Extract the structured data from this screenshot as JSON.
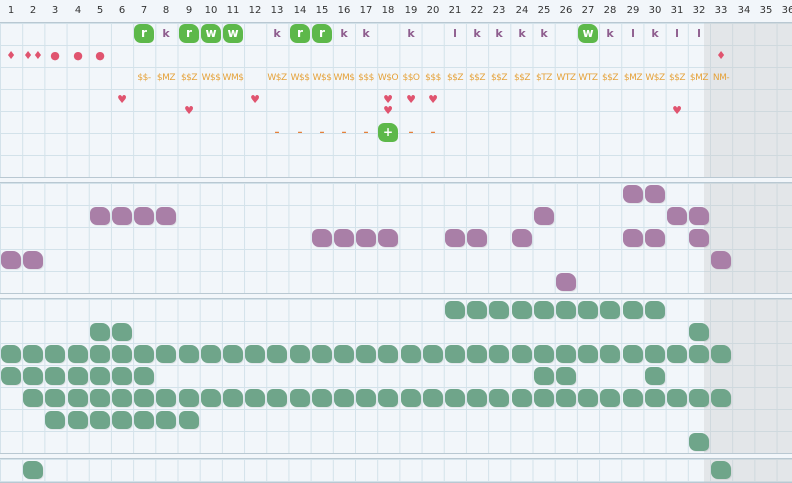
{
  "columns": [
    "1",
    "2",
    "3",
    "4",
    "5",
    "6",
    "7",
    "8",
    "9",
    "10",
    "11",
    "12",
    "13",
    "14",
    "15",
    "16",
    "17",
    "18",
    "19",
    "20",
    "21",
    "22",
    "23",
    "24",
    "25",
    "26",
    "27",
    "28",
    "29",
    "30",
    "31",
    "32",
    "33",
    "34",
    "35",
    "36"
  ],
  "colors": {
    "purple": "#a97fa7",
    "green": "#6fa58a",
    "bright": "#5db84a",
    "gold": "#e5a23a",
    "red": "#e0546f"
  },
  "band1": {
    "cells": [
      {
        "r": 0,
        "c": 7,
        "kind": "tag",
        "text": "r"
      },
      {
        "r": 0,
        "c": 8,
        "kind": "k",
        "text": "k"
      },
      {
        "r": 0,
        "c": 9,
        "kind": "tag",
        "text": "r"
      },
      {
        "r": 0,
        "c": 10,
        "kind": "tag",
        "text": "w"
      },
      {
        "r": 0,
        "c": 11,
        "kind": "tag",
        "text": "w"
      },
      {
        "r": 0,
        "c": 13,
        "kind": "k",
        "text": "k"
      },
      {
        "r": 0,
        "c": 14,
        "kind": "tag",
        "text": "r"
      },
      {
        "r": 0,
        "c": 15,
        "kind": "tag",
        "text": "r"
      },
      {
        "r": 0,
        "c": 16,
        "kind": "k",
        "text": "k"
      },
      {
        "r": 0,
        "c": 17,
        "kind": "k",
        "text": "k"
      },
      {
        "r": 0,
        "c": 19,
        "kind": "k",
        "text": "k"
      },
      {
        "r": 0,
        "c": 21,
        "kind": "k",
        "text": "l"
      },
      {
        "r": 0,
        "c": 22,
        "kind": "k",
        "text": "k"
      },
      {
        "r": 0,
        "c": 23,
        "kind": "k",
        "text": "k"
      },
      {
        "r": 0,
        "c": 24,
        "kind": "k",
        "text": "k"
      },
      {
        "r": 0,
        "c": 25,
        "kind": "k",
        "text": "k"
      },
      {
        "r": 0,
        "c": 27,
        "kind": "tag",
        "text": "w"
      },
      {
        "r": 0,
        "c": 28,
        "kind": "k",
        "text": "k"
      },
      {
        "r": 0,
        "c": 29,
        "kind": "k",
        "text": "l"
      },
      {
        "r": 0,
        "c": 30,
        "kind": "k",
        "text": "k"
      },
      {
        "r": 0,
        "c": 31,
        "kind": "k",
        "text": "l"
      },
      {
        "r": 0,
        "c": 32,
        "kind": "k",
        "text": "l"
      },
      {
        "r": 1,
        "c": 1,
        "kind": "drop",
        "text": "♦"
      },
      {
        "r": 1,
        "c": 2,
        "kind": "drop",
        "text": "♦♦"
      },
      {
        "r": 1,
        "c": 3,
        "kind": "drop",
        "text": "●"
      },
      {
        "r": 1,
        "c": 4,
        "kind": "drop",
        "text": "●"
      },
      {
        "r": 1,
        "c": 5,
        "kind": "drop",
        "text": "●"
      },
      {
        "r": 1,
        "c": 33,
        "kind": "drop",
        "text": "♦"
      },
      {
        "r": 2,
        "c": 7,
        "kind": "gold",
        "text": "$$-"
      },
      {
        "r": 2,
        "c": 8,
        "kind": "gold",
        "text": "$MZ"
      },
      {
        "r": 2,
        "c": 9,
        "kind": "gold",
        "text": "$$Z"
      },
      {
        "r": 2,
        "c": 10,
        "kind": "gold",
        "text": "W$$"
      },
      {
        "r": 2,
        "c": 11,
        "kind": "gold",
        "text": "WM$"
      },
      {
        "r": 2,
        "c": 13,
        "kind": "gold",
        "text": "W$Z"
      },
      {
        "r": 2,
        "c": 14,
        "kind": "gold",
        "text": "W$$"
      },
      {
        "r": 2,
        "c": 15,
        "kind": "gold",
        "text": "W$$"
      },
      {
        "r": 2,
        "c": 16,
        "kind": "gold",
        "text": "WM$"
      },
      {
        "r": 2,
        "c": 17,
        "kind": "gold",
        "text": "$$$"
      },
      {
        "r": 2,
        "c": 18,
        "kind": "gold",
        "text": "W$O"
      },
      {
        "r": 2,
        "c": 19,
        "kind": "gold",
        "text": "$$O"
      },
      {
        "r": 2,
        "c": 20,
        "kind": "gold",
        "text": "$$$"
      },
      {
        "r": 2,
        "c": 21,
        "kind": "gold",
        "text": "$$Z"
      },
      {
        "r": 2,
        "c": 22,
        "kind": "gold",
        "text": "$$Z"
      },
      {
        "r": 2,
        "c": 23,
        "kind": "gold",
        "text": "$$Z"
      },
      {
        "r": 2,
        "c": 24,
        "kind": "gold",
        "text": "$$Z"
      },
      {
        "r": 2,
        "c": 25,
        "kind": "gold",
        "text": "$TZ"
      },
      {
        "r": 2,
        "c": 26,
        "kind": "gold",
        "text": "WTZ"
      },
      {
        "r": 2,
        "c": 27,
        "kind": "gold",
        "text": "WTZ"
      },
      {
        "r": 2,
        "c": 28,
        "kind": "gold",
        "text": "$$Z"
      },
      {
        "r": 2,
        "c": 29,
        "kind": "gold",
        "text": "$MZ"
      },
      {
        "r": 2,
        "c": 30,
        "kind": "gold",
        "text": "W$Z"
      },
      {
        "r": 2,
        "c": 31,
        "kind": "gold",
        "text": "$$Z"
      },
      {
        "r": 2,
        "c": 32,
        "kind": "gold",
        "text": "$MZ"
      },
      {
        "r": 2,
        "c": 33,
        "kind": "gold",
        "text": "NM-"
      },
      {
        "r": 3,
        "c": 6,
        "kind": "heart",
        "text": "♥"
      },
      {
        "r": 3,
        "c": 12,
        "kind": "heart",
        "text": "♥"
      },
      {
        "r": 3,
        "c": 18,
        "kind": "heart",
        "text": "♥"
      },
      {
        "r": 3,
        "c": 19,
        "kind": "heart",
        "text": "♥"
      },
      {
        "r": 3,
        "c": 20,
        "kind": "heart",
        "text": "♥"
      },
      {
        "r": 3.5,
        "c": 9,
        "kind": "heart",
        "text": "♥"
      },
      {
        "r": 3.5,
        "c": 18,
        "kind": "heart",
        "text": "♥"
      },
      {
        "r": 3.5,
        "c": 31,
        "kind": "heart",
        "text": "♥"
      },
      {
        "r": 4.5,
        "c": 13,
        "kind": "dash",
        "text": "–"
      },
      {
        "r": 4.5,
        "c": 14,
        "kind": "dash",
        "text": "–"
      },
      {
        "r": 4.5,
        "c": 15,
        "kind": "dash",
        "text": "–"
      },
      {
        "r": 4.5,
        "c": 16,
        "kind": "dash",
        "text": "–"
      },
      {
        "r": 4.5,
        "c": 17,
        "kind": "dash",
        "text": "–"
      },
      {
        "r": 4.5,
        "c": 18,
        "kind": "tag",
        "text": "+"
      },
      {
        "r": 4.5,
        "c": 19,
        "kind": "dash",
        "text": "–"
      },
      {
        "r": 4.5,
        "c": 20,
        "kind": "dash",
        "text": "–"
      }
    ]
  },
  "band2": {
    "purple": [
      [
        0,
        29
      ],
      [
        0,
        30
      ],
      [
        1,
        5
      ],
      [
        1,
        6
      ],
      [
        1,
        7
      ],
      [
        1,
        8
      ],
      [
        1,
        25
      ],
      [
        1,
        31
      ],
      [
        1,
        32
      ],
      [
        2,
        15
      ],
      [
        2,
        16
      ],
      [
        2,
        17
      ],
      [
        2,
        18
      ],
      [
        2,
        21
      ],
      [
        2,
        22
      ],
      [
        2,
        24
      ],
      [
        2,
        29
      ],
      [
        2,
        30
      ],
      [
        2,
        32
      ],
      [
        3,
        1
      ],
      [
        3,
        2
      ],
      [
        3,
        33
      ],
      [
        4,
        26
      ]
    ]
  },
  "band3": {
    "green": [
      [
        0,
        21
      ],
      [
        0,
        22
      ],
      [
        0,
        23
      ],
      [
        0,
        24
      ],
      [
        0,
        25
      ],
      [
        0,
        26
      ],
      [
        0,
        27
      ],
      [
        0,
        28
      ],
      [
        0,
        29
      ],
      [
        0,
        30
      ],
      [
        1,
        5
      ],
      [
        1,
        6
      ],
      [
        1,
        32
      ],
      [
        2,
        1
      ],
      [
        2,
        2
      ],
      [
        2,
        3
      ],
      [
        2,
        4
      ],
      [
        2,
        5
      ],
      [
        2,
        6
      ],
      [
        2,
        7
      ],
      [
        2,
        8
      ],
      [
        2,
        9
      ],
      [
        2,
        10
      ],
      [
        2,
        11
      ],
      [
        2,
        12
      ],
      [
        2,
        13
      ],
      [
        2,
        14
      ],
      [
        2,
        15
      ],
      [
        2,
        16
      ],
      [
        2,
        17
      ],
      [
        2,
        18
      ],
      [
        2,
        19
      ],
      [
        2,
        20
      ],
      [
        2,
        21
      ],
      [
        2,
        22
      ],
      [
        2,
        23
      ],
      [
        2,
        24
      ],
      [
        2,
        25
      ],
      [
        2,
        26
      ],
      [
        2,
        27
      ],
      [
        2,
        28
      ],
      [
        2,
        29
      ],
      [
        2,
        30
      ],
      [
        2,
        31
      ],
      [
        2,
        32
      ],
      [
        2,
        33
      ],
      [
        3,
        1
      ],
      [
        3,
        2
      ],
      [
        3,
        3
      ],
      [
        3,
        4
      ],
      [
        3,
        5
      ],
      [
        3,
        6
      ],
      [
        3,
        7
      ],
      [
        3,
        25
      ],
      [
        3,
        26
      ],
      [
        3,
        30
      ],
      [
        4,
        2
      ],
      [
        4,
        3
      ],
      [
        4,
        4
      ],
      [
        4,
        5
      ],
      [
        4,
        6
      ],
      [
        4,
        7
      ],
      [
        4,
        8
      ],
      [
        4,
        9
      ],
      [
        4,
        10
      ],
      [
        4,
        11
      ],
      [
        4,
        12
      ],
      [
        4,
        13
      ],
      [
        4,
        14
      ],
      [
        4,
        15
      ],
      [
        4,
        16
      ],
      [
        4,
        17
      ],
      [
        4,
        18
      ],
      [
        4,
        19
      ],
      [
        4,
        20
      ],
      [
        4,
        21
      ],
      [
        4,
        22
      ],
      [
        4,
        23
      ],
      [
        4,
        24
      ],
      [
        4,
        25
      ],
      [
        4,
        26
      ],
      [
        4,
        27
      ],
      [
        4,
        28
      ],
      [
        4,
        29
      ],
      [
        4,
        30
      ],
      [
        4,
        31
      ],
      [
        4,
        32
      ],
      [
        4,
        33
      ],
      [
        5,
        3
      ],
      [
        5,
        4
      ],
      [
        5,
        5
      ],
      [
        5,
        6
      ],
      [
        5,
        7
      ],
      [
        5,
        8
      ],
      [
        5,
        9
      ],
      [
        6,
        32
      ]
    ]
  },
  "band4": {
    "green": [
      [
        0,
        2
      ],
      [
        0,
        33
      ]
    ]
  }
}
